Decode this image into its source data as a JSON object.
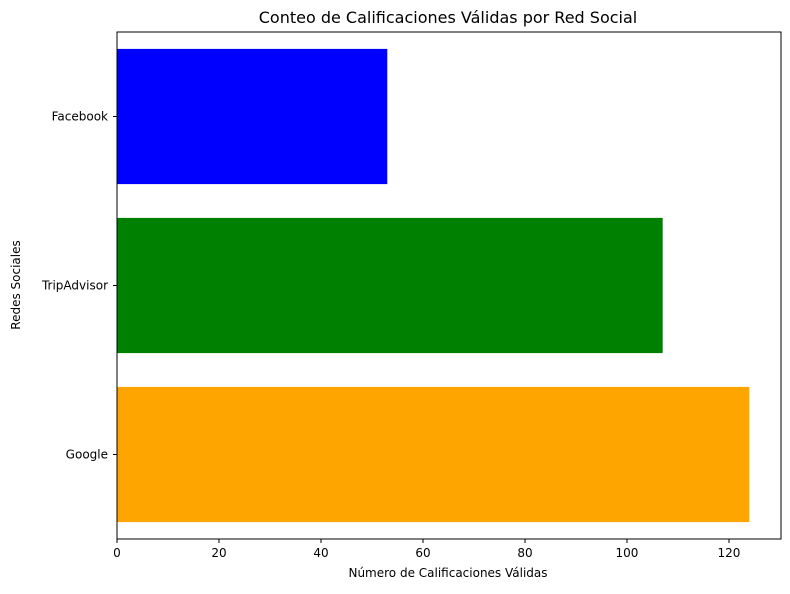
{
  "chart_data": {
    "type": "bar",
    "orientation": "horizontal",
    "title": "Conteo de Calificaciones Válidas por Red Social",
    "xlabel": "Número de Calificaciones Válidas",
    "ylabel": "Redes Sociales",
    "categories": [
      "Google",
      "TripAdvisor",
      "Facebook"
    ],
    "values": [
      124,
      107,
      53
    ],
    "colors": [
      "#ffa500",
      "#008000",
      "#0000ff"
    ],
    "xlim": [
      0,
      130.2
    ],
    "xticks": [
      0,
      20,
      40,
      60,
      80,
      100,
      120
    ],
    "grid": false,
    "legend": "none"
  }
}
